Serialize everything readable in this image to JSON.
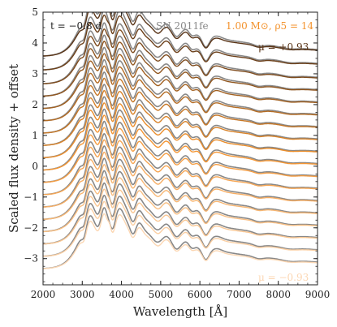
{
  "chart_data": {
    "type": "line",
    "title": "",
    "xlabel": "Wavelength [Å]",
    "ylabel": "Scaled flux density + offset",
    "xlim": [
      2000,
      9000
    ],
    "ylim": [
      -3.85,
      5
    ],
    "x_ticks": [
      2000,
      3000,
      4000,
      5000,
      6000,
      7000,
      8000,
      9000
    ],
    "y_ticks": [
      -3,
      -2,
      -1,
      0,
      1,
      2,
      3,
      4,
      5
    ],
    "x_tick_labels": [
      "2000",
      "3000",
      "4000",
      "5000",
      "6000",
      "7000",
      "8000",
      "9000"
    ],
    "y_tick_labels": [
      "−3",
      "−2",
      "−1",
      "0",
      "1",
      "2",
      "3",
      "4",
      "5"
    ],
    "grid": false,
    "annotations": {
      "time": "t = −0.8 d",
      "observed": "SN 2011fe",
      "model": "1.00 M⊙, ρ5 = 14",
      "mu_top": "μ = +0.93",
      "mu_bottom": "μ = −0.93"
    },
    "colors": {
      "observed": "#888888",
      "model_dark": "#5a3518",
      "model_mid": "#f3922c",
      "model_light": "#fcd7b3"
    },
    "offsets": [
      3.55,
      3.1,
      2.65,
      2.25,
      1.85,
      1.45,
      1.05,
      0.65,
      0.25,
      -0.15,
      -0.55,
      -0.95,
      -1.35,
      -1.75,
      -2.15,
      -2.55,
      -2.95,
      -3.35
    ],
    "mu_values": [
      0.93,
      0.82,
      0.71,
      0.6,
      0.49,
      0.38,
      0.27,
      0.16,
      0.05,
      -0.05,
      -0.16,
      -0.27,
      -0.38,
      -0.49,
      -0.6,
      -0.71,
      -0.82,
      -0.93
    ]
  }
}
